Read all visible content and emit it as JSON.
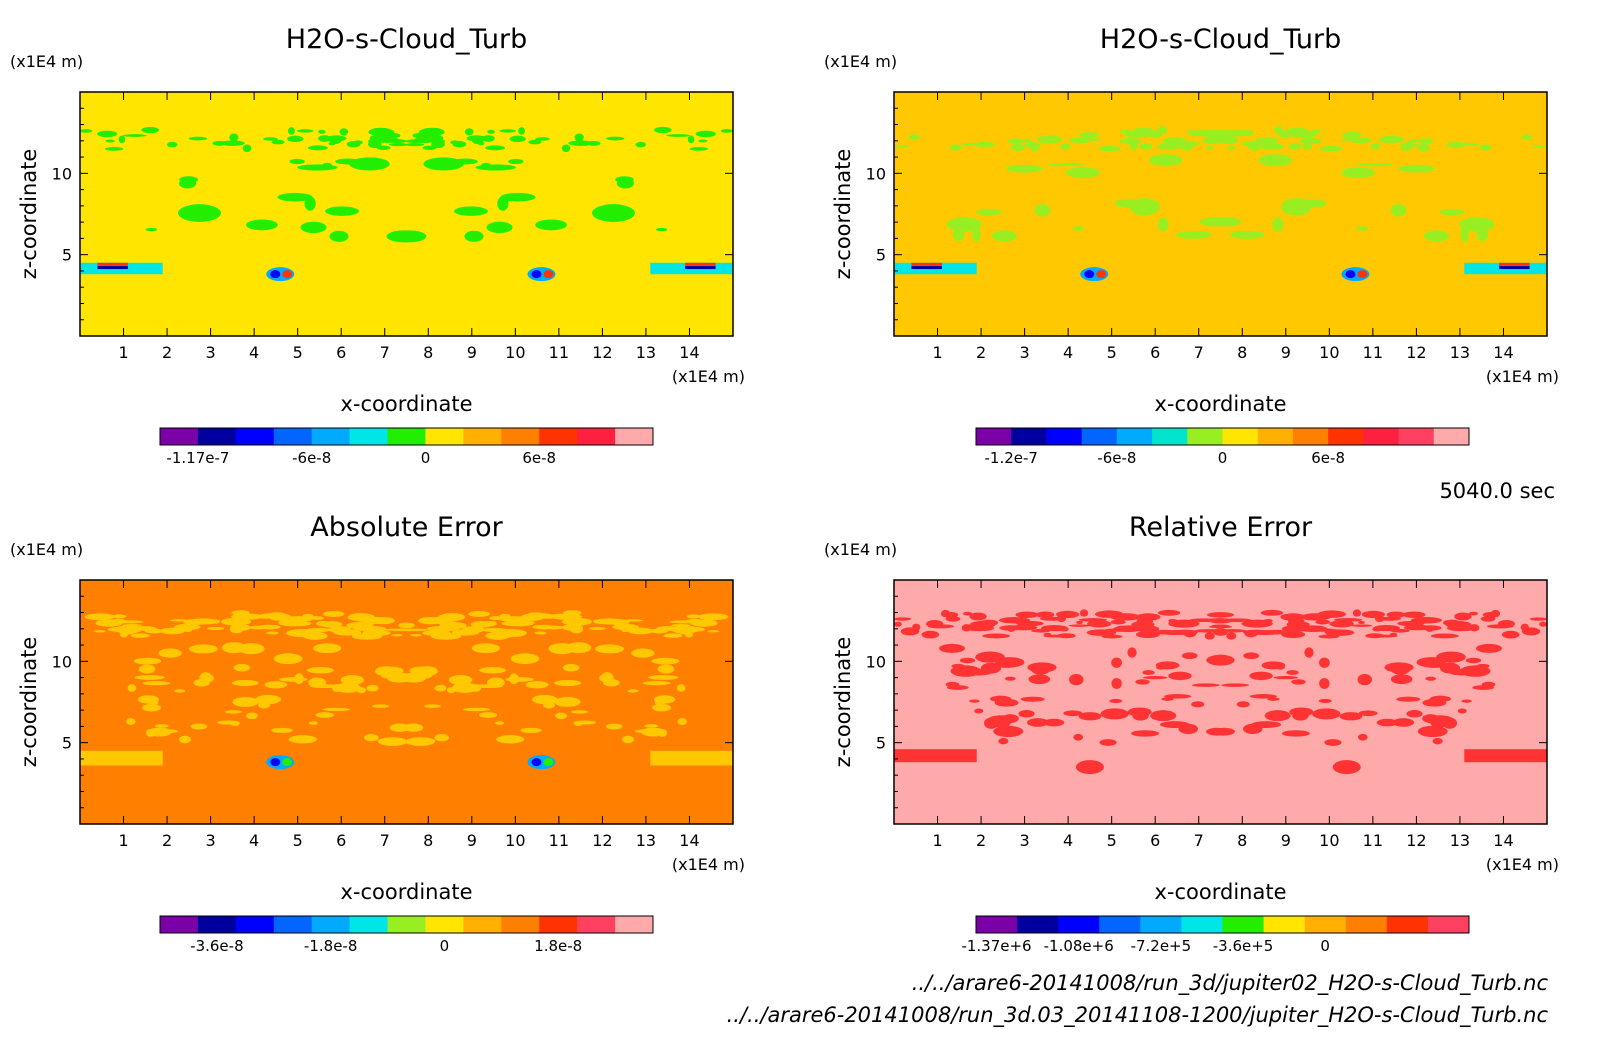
{
  "time_label": "5040.0 sec",
  "file_paths": [
    "../../arare6-20141008/run_3d/jupiter02_H2O-s-Cloud_Turb.nc",
    "../../arare6-20141008/run_3d.03_20141108-1200/jupiter_H2O-s-Cloud_Turb.nc"
  ],
  "colors": {
    "palette14": [
      "#7a00a8",
      "#0000a0",
      "#0000ff",
      "#0066ff",
      "#00aaff",
      "#00e5e5",
      "#22ee00",
      "#ffe500",
      "#ffb000",
      "#ff7f00",
      "#ff3300",
      "#ff2040",
      "#ff4060",
      "#ffaaaa"
    ]
  },
  "chart_data": [
    {
      "type": "heatmap",
      "title": "H2O-s-Cloud_Turb",
      "xlabel": "x-coordinate",
      "ylabel": "z-coordinate",
      "x_unit": "(x1E4 m)",
      "y_unit": "(x1E4 m)",
      "xlim": [
        0,
        15
      ],
      "ylim": [
        0,
        15
      ],
      "x_ticks": [
        "1",
        "2",
        "3",
        "4",
        "5",
        "6",
        "7",
        "8",
        "9",
        "10",
        "11",
        "12",
        "13",
        "14"
      ],
      "y_ticks": [
        "5",
        "10"
      ],
      "background_color": "#ffe500",
      "features": [
        {
          "label": "upper cloud band",
          "color": "#22ee00",
          "z_range": [
            11.5,
            12.7
          ]
        },
        {
          "label": "inner cloud patches",
          "color": "#22ee00",
          "z_range": [
            6,
            11
          ]
        },
        {
          "label": "edge layer",
          "color": "#00e5e5",
          "z_range": [
            3.8,
            4.5
          ]
        },
        {
          "label": "vortex pair",
          "color": "#ff3300",
          "x": [
            4.6,
            10.6
          ],
          "z": 3.8
        }
      ],
      "colorbar": {
        "colors": [
          "#7a00a8",
          "#0000a0",
          "#0000ff",
          "#0066ff",
          "#00aaff",
          "#00e5e5",
          "#22ee00",
          "#ffe500",
          "#ffb000",
          "#ff7f00",
          "#ff3300",
          "#ff2040",
          "#ffaaaa"
        ],
        "tick_labels": [
          "-1.17e-7",
          "-6e-8",
          "0",
          "6e-8"
        ],
        "tick_index": [
          1,
          4,
          7,
          10
        ]
      }
    },
    {
      "type": "heatmap",
      "title": "H2O-s-Cloud_Turb",
      "xlabel": "x-coordinate",
      "ylabel": "z-coordinate",
      "x_unit": "(x1E4 m)",
      "y_unit": "(x1E4 m)",
      "xlim": [
        0,
        15
      ],
      "ylim": [
        0,
        15
      ],
      "x_ticks": [
        "1",
        "2",
        "3",
        "4",
        "5",
        "6",
        "7",
        "8",
        "9",
        "10",
        "11",
        "12",
        "13",
        "14"
      ],
      "y_ticks": [
        "5",
        "10"
      ],
      "background_color": "#ffc800",
      "features": [
        {
          "label": "upper cloud band",
          "color": "#99ee22",
          "z_range": [
            11.5,
            12.7
          ]
        },
        {
          "label": "inner cloud patches",
          "color": "#99ee22",
          "z_range": [
            6,
            11
          ]
        },
        {
          "label": "edge layer",
          "color": "#00e5e5",
          "z_range": [
            3.8,
            4.5
          ]
        },
        {
          "label": "vortex pair",
          "color": "#ff3300",
          "x": [
            4.6,
            10.6
          ],
          "z": 3.8
        }
      ],
      "colorbar": {
        "colors": [
          "#7a00a8",
          "#0000a0",
          "#0000ff",
          "#0066ff",
          "#00aaff",
          "#00e5cc",
          "#99ee22",
          "#ffe500",
          "#ffb000",
          "#ff7f00",
          "#ff3300",
          "#ff2040",
          "#ff4060",
          "#ffaaaa"
        ],
        "tick_labels": [
          "-1.2e-7",
          "-6e-8",
          "0",
          "6e-8"
        ],
        "tick_index": [
          1,
          4,
          7,
          10
        ]
      }
    },
    {
      "type": "heatmap",
      "title": "Absolute Error",
      "xlabel": "x-coordinate",
      "ylabel": "z-coordinate",
      "x_unit": "(x1E4 m)",
      "y_unit": "(x1E4 m)",
      "xlim": [
        0,
        15
      ],
      "ylim": [
        0,
        15
      ],
      "x_ticks": [
        "1",
        "2",
        "3",
        "4",
        "5",
        "6",
        "7",
        "8",
        "9",
        "10",
        "11",
        "12",
        "13",
        "14"
      ],
      "y_ticks": [
        "5",
        "10"
      ],
      "background_color": "#ff7f00",
      "features": [
        {
          "label": "upper error band",
          "color": "#ffc800",
          "z_range": [
            11.5,
            13
          ]
        },
        {
          "label": "inner error patches",
          "color": "#ffc800",
          "z_range": [
            5,
            11
          ]
        },
        {
          "label": "edge layer",
          "color": "#ffc800",
          "z_range": [
            3.6,
            4.5
          ]
        },
        {
          "label": "vortex pair",
          "color": "#22ee00",
          "x": [
            4.6,
            10.6
          ],
          "z": 3.8
        }
      ],
      "colorbar": {
        "colors": [
          "#7a00a8",
          "#0000a0",
          "#0000ff",
          "#0066ff",
          "#00aaff",
          "#00e5e5",
          "#99ee22",
          "#ffe500",
          "#ffb000",
          "#ff7f00",
          "#ff3300",
          "#ff4060",
          "#ffaaaa"
        ],
        "tick_labels": [
          "-3.6e-8",
          "-1.8e-8",
          "0",
          "1.8e-8"
        ],
        "tick_index": [
          1.5,
          4.5,
          7.5,
          10.5
        ]
      }
    },
    {
      "type": "heatmap",
      "title": "Relative Error",
      "xlabel": "x-coordinate",
      "ylabel": "z-coordinate",
      "x_unit": "(x1E4 m)",
      "y_unit": "(x1E4 m)",
      "xlim": [
        0,
        15
      ],
      "ylim": [
        0,
        15
      ],
      "x_ticks": [
        "1",
        "2",
        "3",
        "4",
        "5",
        "6",
        "7",
        "8",
        "9",
        "10",
        "11",
        "12",
        "13",
        "14"
      ],
      "y_ticks": [
        "5",
        "10"
      ],
      "background_color": "#ffaaaa",
      "features": [
        {
          "label": "upper error band",
          "color": "#ff3333",
          "z_range": [
            11.5,
            13
          ]
        },
        {
          "label": "inner error patches",
          "color": "#ff3333",
          "z_range": [
            5,
            11
          ]
        },
        {
          "label": "edge layer",
          "color": "#ff3333",
          "z_range": [
            3.8,
            4.6
          ]
        },
        {
          "label": "lower blobs",
          "color": "#ff3333",
          "x": [
            4.5,
            10.4
          ],
          "z": 3.5
        }
      ],
      "colorbar": {
        "colors": [
          "#7a00a8",
          "#0000a0",
          "#0000ff",
          "#0066ff",
          "#00aaff",
          "#00e5e5",
          "#22ee00",
          "#ffe500",
          "#ffb000",
          "#ff7f00",
          "#ff3300",
          "#ff4060"
        ],
        "tick_labels": [
          "-1.37e+6",
          "-1.08e+6",
          "-7.2e+5",
          "-3.6e+5",
          "0"
        ],
        "tick_index": [
          0.5,
          2.5,
          4.5,
          6.5,
          8.5
        ]
      }
    }
  ]
}
